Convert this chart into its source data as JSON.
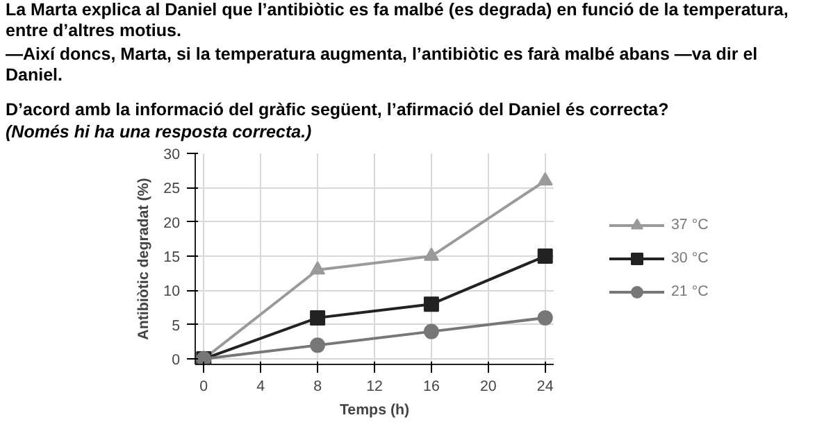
{
  "chart_data": {
    "type": "line",
    "title": "La Marta explica al Daniel que l’antibiòtic es fa malbé (es degrada) en funció de la temperatura, entre d’altres motius.",
    "subtitle": "—Així doncs, Marta, si la temperatura augmenta, l’antibiòtic es farà malbé abans —va dir el Daniel.",
    "annotations": [
      "D’acord amb la informació del gràfic següent, l’afirmació del Daniel és correcta?",
      "(Només hi ha una resposta correcta.)"
    ],
    "xlabel": "Temps (h)",
    "ylabel": "Antibiòtic degradat (%)",
    "x": [
      0,
      8,
      16,
      24
    ],
    "series": [
      {
        "name": "37 °C",
        "color": "#9a9a9a",
        "marker": "triangle",
        "values": [
          0,
          13,
          15,
          26
        ]
      },
      {
        "name": "30 °C",
        "color": "#222222",
        "marker": "square",
        "values": [
          0,
          6,
          8,
          15
        ]
      },
      {
        "name": "21 °C",
        "color": "#777777",
        "marker": "circle",
        "values": [
          0,
          2,
          4,
          6
        ]
      }
    ],
    "xlim": [
      -0.6,
      24.6
    ],
    "ylim": [
      -0.8,
      30
    ],
    "xticks": [
      0,
      4,
      8,
      12,
      16,
      20,
      24
    ],
    "yticks": [
      0,
      5,
      10,
      15,
      20,
      25,
      30
    ],
    "grid": true,
    "legend": "right",
    "line_style": "solid"
  }
}
